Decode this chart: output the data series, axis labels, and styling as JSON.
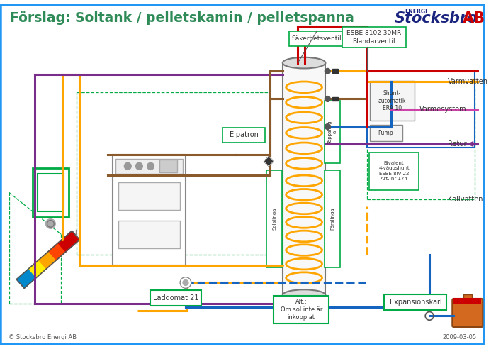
{
  "title": "Förslag: Soltank / pelletskamin / pelletspanna",
  "bg_color": "#ffffff",
  "border_color": "#2196F3",
  "title_color": "#2e8b57",
  "logo_color": "#1a237e",
  "copyright": "© Stocksbro Energi AB",
  "date": "2009-03-05",
  "labels": {
    "sakerhetsventil": "Säkerhetsventil",
    "blandarventil": "ESBE 8102 30MR\nBlandarventil",
    "elpatron": "Elpatron",
    "varmvatten": "Varmvatten",
    "shunt": "Shunt-\nautomatik\nERA 10",
    "pump": "Pump",
    "varmsystem": "Värmesystem",
    "bivalent": "Bivalent\n4-vägoshunt\nESBE 8IV 22\nArt. nr 174",
    "retur": "Retur",
    "kallvatten": "Kallvatten",
    "laddomat": "Laddomat 21",
    "expansionskärl": "Expansionskärl",
    "alt": "Alt.:\nOm sol inte är\ninkopplat",
    "toppsling": "Toppsling\na",
    "solslinga": "Solslinga",
    "forslinga": "Förslinga"
  },
  "colors": {
    "pipe_orange": "#FFA500",
    "pipe_purple": "#7B2D8B",
    "pipe_blue": "#1565C0",
    "pipe_brown": "#8B5A2B",
    "pipe_red": "#CC0000",
    "dashed_green": "#00AA44",
    "dashed_orange": "#FFA500",
    "box_green": "#00AA44",
    "box_blue": "#1565C0",
    "pipe_pink": "#CC44AA"
  }
}
